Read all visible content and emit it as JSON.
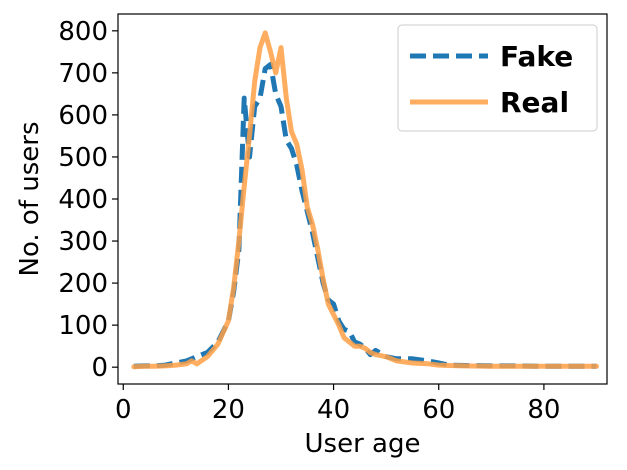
{
  "chart_data": {
    "type": "line",
    "xlabel": "User age",
    "ylabel": "No. of users",
    "xlim": [
      -1,
      92
    ],
    "ylim": [
      -40,
      840
    ],
    "x_ticks": [
      0,
      20,
      40,
      60,
      80
    ],
    "y_ticks": [
      0,
      100,
      200,
      300,
      400,
      500,
      600,
      700,
      800
    ],
    "grid": false,
    "legend": "top-right",
    "series": [
      {
        "name": "Fake",
        "color": "#1f77b4",
        "style": "dashed",
        "x": [
          2,
          4,
          6,
          8,
          10,
          12,
          14,
          16,
          18,
          20,
          21,
          22,
          23,
          24,
          25,
          26,
          27,
          28,
          29,
          30,
          31,
          32,
          33,
          34,
          35,
          36,
          37,
          38,
          39,
          40,
          41,
          42,
          43,
          44,
          45,
          46,
          47,
          48,
          50,
          52,
          55,
          58,
          60,
          62,
          65,
          70,
          75,
          80,
          85,
          90
        ],
        "y": [
          2,
          3,
          3,
          5,
          10,
          15,
          25,
          35,
          60,
          110,
          180,
          280,
          640,
          500,
          620,
          640,
          710,
          720,
          650,
          620,
          540,
          520,
          480,
          420,
          370,
          320,
          260,
          200,
          160,
          150,
          110,
          90,
          85,
          60,
          55,
          45,
          30,
          40,
          25,
          20,
          20,
          15,
          10,
          5,
          4,
          3,
          3,
          2,
          2,
          2
        ]
      },
      {
        "name": "Real",
        "color": "#ff9f45",
        "style": "solid",
        "x": [
          2,
          4,
          6,
          8,
          10,
          12,
          13,
          14,
          16,
          18,
          20,
          21,
          22,
          23,
          24,
          25,
          26,
          27,
          28,
          29,
          30,
          31,
          32,
          33,
          34,
          35,
          36,
          37,
          38,
          39,
          40,
          41,
          42,
          43,
          44,
          45,
          46,
          47,
          48,
          50,
          52,
          55,
          58,
          60,
          62,
          65,
          70,
          75,
          80,
          85,
          90
        ],
        "y": [
          1,
          2,
          2,
          3,
          5,
          8,
          15,
          8,
          25,
          55,
          110,
          190,
          300,
          430,
          550,
          680,
          760,
          795,
          750,
          700,
          760,
          640,
          560,
          530,
          470,
          380,
          340,
          280,
          210,
          150,
          125,
          100,
          70,
          60,
          50,
          50,
          45,
          35,
          30,
          25,
          15,
          10,
          8,
          5,
          4,
          3,
          2,
          2,
          2,
          2,
          2
        ]
      }
    ]
  }
}
